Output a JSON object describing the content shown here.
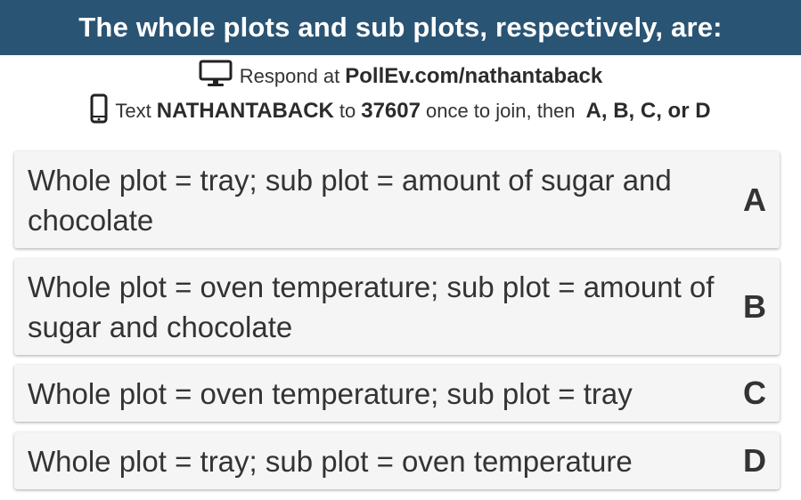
{
  "header": {
    "title": "The whole plots and sub plots, respectively, are:"
  },
  "instructions": {
    "web": {
      "icon": "monitor-icon",
      "prefix": "Respond at",
      "url": "PollEv.com/nathantaback"
    },
    "sms": {
      "icon": "phone-icon",
      "prefix": "Text",
      "keyword": "NATHANTABACK",
      "to": "to",
      "number": "37607",
      "middle": "once to join, then",
      "choices": "A, B, C, or D"
    }
  },
  "options": [
    {
      "text": "Whole plot = tray; sub plot = amount of sugar and chocolate",
      "letter": "A"
    },
    {
      "text": "Whole plot = oven temperature; sub plot = amount of sugar and chocolate",
      "letter": "B"
    },
    {
      "text": "Whole plot = oven temperature; sub plot = tray",
      "letter": "C"
    },
    {
      "text": "Whole plot = tray; sub plot = oven temperature",
      "letter": "D"
    }
  ],
  "colors": {
    "header_bg": "#2a5474",
    "option_bg": "#f5f5f5",
    "text": "#333333"
  }
}
